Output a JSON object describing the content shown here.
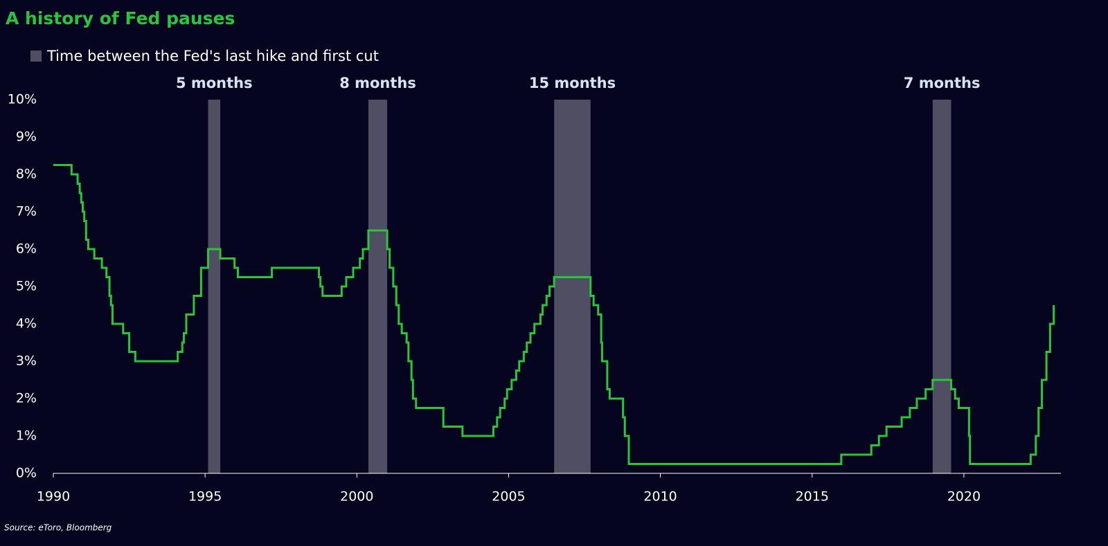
{
  "chart_data": {
    "type": "line",
    "title": "A history of Fed pauses",
    "source": "Source: eToro, Bloomberg",
    "step": "post",
    "background": "#05051f",
    "legend": {
      "label": "Time between the Fed's last hike and first cut",
      "color": "#4f4e63",
      "position": "top-left"
    },
    "regions": [
      {
        "start": 1995.1,
        "end": 1995.5,
        "label": "5 months"
      },
      {
        "start": 2000.38,
        "end": 2001.0,
        "label": "8 months"
      },
      {
        "start": 2006.5,
        "end": 2007.7,
        "label": "15 months"
      },
      {
        "start": 2018.97,
        "end": 2019.58,
        "label": "7 months"
      }
    ],
    "xlim": [
      1990,
      2023.2
    ],
    "xticks": [
      1990,
      1995,
      2000,
      2005,
      2010,
      2015,
      2020
    ],
    "ylim": [
      0,
      10
    ],
    "yticks": [
      {
        "value": 0,
        "label": "0%"
      },
      {
        "value": 1,
        "label": "1%"
      },
      {
        "value": 2,
        "label": "2%"
      },
      {
        "value": 3,
        "label": "3%"
      },
      {
        "value": 4,
        "label": "4%"
      },
      {
        "value": 5,
        "label": "5%"
      },
      {
        "value": 6,
        "label": "6%"
      },
      {
        "value": 7,
        "label": "7%"
      },
      {
        "value": 8,
        "label": "8%"
      },
      {
        "value": 9,
        "label": "9%"
      },
      {
        "value": 10,
        "label": "10%"
      }
    ],
    "series": [
      {
        "color": "#2bc43a",
        "x": [
          1990.0,
          1990.6,
          1990.8,
          1990.87,
          1990.92,
          1990.97,
          1991.02,
          1991.08,
          1991.15,
          1991.35,
          1991.6,
          1991.75,
          1991.85,
          1991.9,
          1991.95,
          1992.3,
          1992.5,
          1992.7,
          1994.1,
          1994.25,
          1994.3,
          1994.38,
          1994.63,
          1994.87,
          1995.1,
          1995.5,
          1995.97,
          1996.08,
          1997.2,
          1998.75,
          1998.8,
          1998.87,
          1999.5,
          1999.65,
          1999.88,
          2000.1,
          2000.2,
          2000.38,
          2001.0,
          2001.08,
          2001.2,
          2001.3,
          2001.38,
          2001.48,
          2001.64,
          2001.7,
          2001.8,
          2001.85,
          2001.95,
          2002.85,
          2003.48,
          2004.5,
          2004.62,
          2004.72,
          2004.87,
          2004.95,
          2005.1,
          2005.25,
          2005.35,
          2005.5,
          2005.6,
          2005.72,
          2005.85,
          2006.05,
          2006.12,
          2006.25,
          2006.35,
          2006.5,
          2007.7,
          2007.8,
          2007.95,
          2008.05,
          2008.08,
          2008.25,
          2008.33,
          2008.77,
          2008.83,
          2008.96,
          2015.96,
          2016.95,
          2017.2,
          2017.45,
          2017.95,
          2018.22,
          2018.45,
          2018.74,
          2018.97,
          2019.58,
          2019.71,
          2019.83,
          2020.17,
          2020.2,
          2022.2,
          2022.37,
          2022.46,
          2022.57,
          2022.72,
          2022.84,
          2022.96
        ],
        "values": [
          8.25,
          8.0,
          7.75,
          7.5,
          7.25,
          7.0,
          6.75,
          6.25,
          6.0,
          5.75,
          5.5,
          5.25,
          4.75,
          4.5,
          4.0,
          3.75,
          3.25,
          3.0,
          3.25,
          3.5,
          3.75,
          4.25,
          4.75,
          5.5,
          6.0,
          5.75,
          5.5,
          5.25,
          5.5,
          5.25,
          5.0,
          4.75,
          5.0,
          5.25,
          5.5,
          5.75,
          6.0,
          6.5,
          6.0,
          5.5,
          5.0,
          4.5,
          4.0,
          3.75,
          3.5,
          3.0,
          2.5,
          2.0,
          1.75,
          1.25,
          1.0,
          1.25,
          1.5,
          1.75,
          2.0,
          2.25,
          2.5,
          2.75,
          3.0,
          3.25,
          3.5,
          3.75,
          4.0,
          4.25,
          4.5,
          4.75,
          5.0,
          5.25,
          4.75,
          4.5,
          4.25,
          3.5,
          3.0,
          2.25,
          2.0,
          1.5,
          1.0,
          0.25,
          0.5,
          0.75,
          1.0,
          1.25,
          1.5,
          1.75,
          2.0,
          2.25,
          2.5,
          2.25,
          2.0,
          1.75,
          1.0,
          0.25,
          0.5,
          1.0,
          1.75,
          2.5,
          3.25,
          4.0,
          4.5
        ]
      }
    ]
  }
}
